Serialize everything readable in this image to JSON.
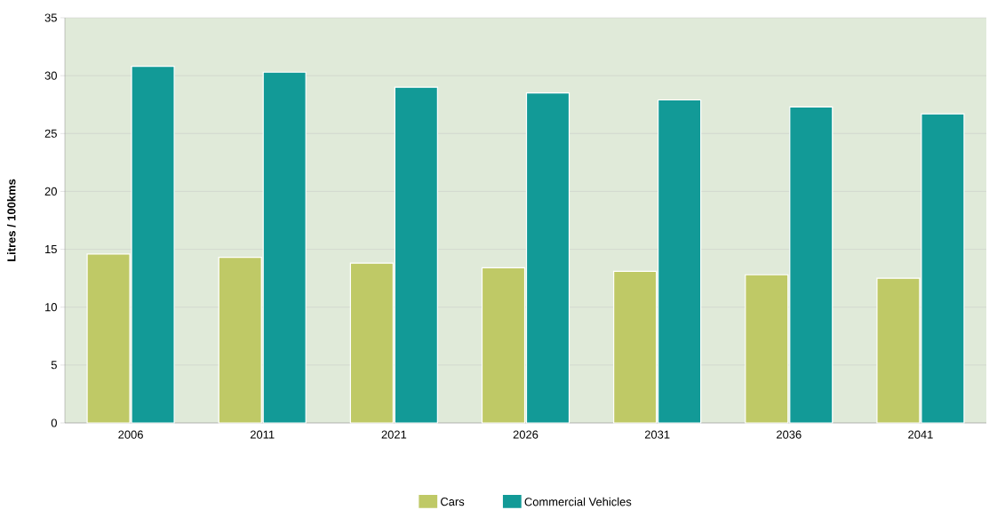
{
  "chart_data": {
    "type": "bar",
    "ylabel": "Litres / 100kms",
    "categories": [
      "2006",
      "2011",
      "2021",
      "2026",
      "2031",
      "2036",
      "2041"
    ],
    "series": [
      {
        "name": "Cars",
        "color": "#bfc966",
        "values": [
          14.6,
          14.3,
          13.8,
          13.4,
          13.1,
          12.8,
          12.5
        ]
      },
      {
        "name": "Commercial Vehicles",
        "color": "#129a97",
        "values": [
          30.8,
          30.3,
          29.0,
          28.5,
          27.9,
          27.3,
          26.7
        ]
      }
    ],
    "ylim": [
      0,
      35
    ],
    "yticks": [
      0,
      5,
      10,
      15,
      20,
      25,
      30,
      35
    ],
    "grid": "y",
    "legend": "bottom"
  }
}
